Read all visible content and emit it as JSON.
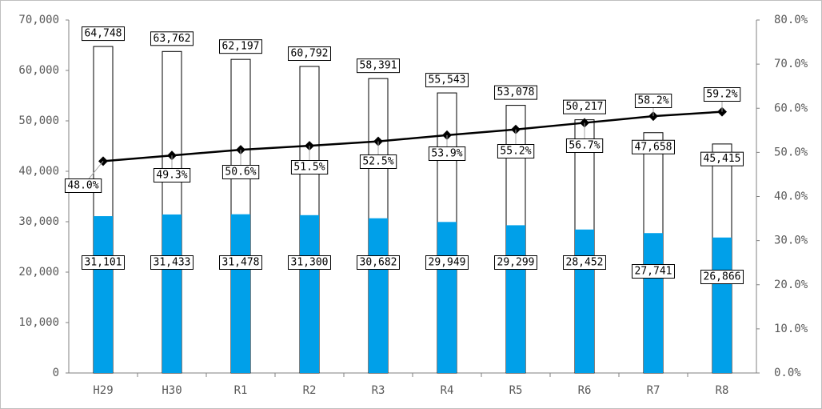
{
  "colors": {
    "bar_blue": "#00A0E9",
    "bar_white": "#FFFFFF",
    "bar_stroke": "#000000",
    "line": "#000000",
    "marker": "#000000",
    "axis": "#808080"
  },
  "chart_data": {
    "type": "bar",
    "subtype": "overlapping bars with secondary-axis line",
    "title": "",
    "xlabel": "",
    "ylabel": "",
    "y2label": "",
    "categories": [
      "H29",
      "H30",
      "R1",
      "R2",
      "R3",
      "R4",
      "R5",
      "R6",
      "R7",
      "R8"
    ],
    "ylim": [
      0,
      70000
    ],
    "y_ticks": [
      0,
      10000,
      20000,
      30000,
      40000,
      50000,
      60000,
      70000
    ],
    "y_tick_labels": [
      "0",
      "10,000",
      "20,000",
      "30,000",
      "40,000",
      "50,000",
      "60,000",
      "70,000"
    ],
    "y2lim": [
      0,
      0.8
    ],
    "y2_ticks": [
      0,
      0.1,
      0.2,
      0.3,
      0.4,
      0.5,
      0.6,
      0.7,
      0.8
    ],
    "y2_tick_labels": [
      "0.0%",
      "10.0%",
      "20.0%",
      "30.0%",
      "40.0%",
      "50.0%",
      "60.0%",
      "70.0%",
      "80.0%"
    ],
    "grid": false,
    "legend": "none",
    "series": [
      {
        "type": "bar",
        "axis": "left",
        "color": "#FFFFFF",
        "values": [
          64748,
          63762,
          62197,
          60792,
          58391,
          55543,
          53078,
          50217,
          47658,
          45415
        ],
        "labels": [
          "64,748",
          "63,762",
          "62,197",
          "60,792",
          "58,391",
          "55,543",
          "53,078",
          "50,217",
          "47,658",
          "45,415"
        ]
      },
      {
        "type": "bar",
        "axis": "left",
        "color": "#00A0E9",
        "values": [
          31101,
          31433,
          31478,
          31300,
          30682,
          29949,
          29299,
          28452,
          27741,
          26866
        ],
        "labels": [
          "31,101",
          "31,433",
          "31,478",
          "31,300",
          "30,682",
          "29,949",
          "29,299",
          "28,452",
          "27,741",
          "26,866"
        ]
      },
      {
        "type": "line",
        "axis": "right",
        "color": "#000000",
        "marker": "diamond",
        "values": [
          0.48,
          0.493,
          0.506,
          0.515,
          0.525,
          0.539,
          0.552,
          0.567,
          0.582,
          0.592
        ],
        "labels": [
          "48.0%",
          "49.3%",
          "50.6%",
          "51.5%",
          "52.5%",
          "53.9%",
          "55.2%",
          "56.7%",
          "58.2%",
          "59.2%"
        ]
      }
    ]
  }
}
